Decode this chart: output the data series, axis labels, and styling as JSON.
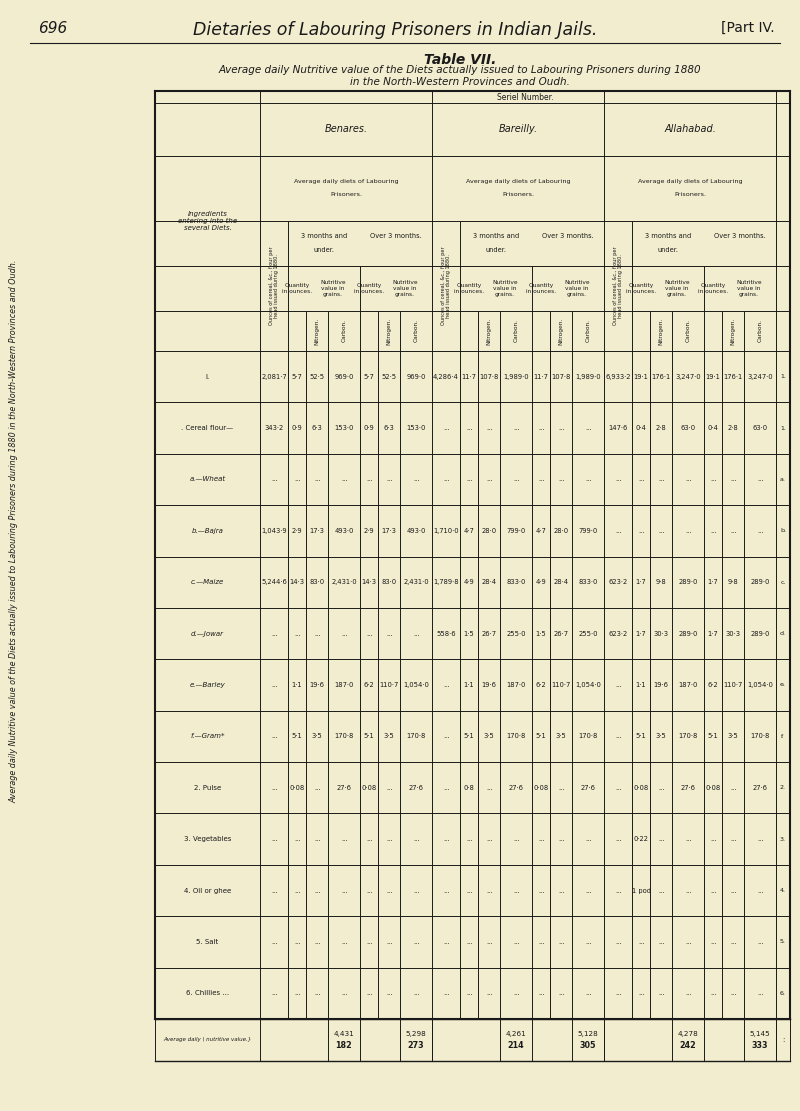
{
  "bg_color": "#f2edcf",
  "page_num": "696",
  "page_title": "Dietaries of Labouring Prisoners in Indian Jails.",
  "part": "[Part IV.",
  "table_num": "Table VII.",
  "subtitle1": "Average daily Nutritive value of the Diets actually issued to Labouring Prisoners during 1880",
  "subtitle2": "in the North-Western Provinces and Oudh.",
  "side_label": "Average daily Nutritive value of the Diets actually issued to Labouring Prisoners during 1880 in the North-Western Provinces and Oudh.",
  "jails": [
    "Benares.",
    "Bareilly.",
    "Allahabad."
  ],
  "serial_numbers": [
    "1.",
    "1.",
    "a.",
    "b.",
    "c.",
    "d.",
    "e.",
    "f.",
    "2.",
    "3.",
    "4.",
    "5.",
    "6.",
    ":"
  ],
  "ingredients": [
    "I.",
    ". Cereal flour—",
    "a.—Wheat",
    "b.—Bajra",
    "c.—Maize",
    "d.—Jowar",
    "e.—Barley",
    "f.—Gram*",
    "2. Pulse",
    "3. Vegetables",
    "4. Oil or ghee",
    "5. Salt",
    "6. Chillies ..."
  ],
  "benares": {
    "oz": [
      "2,081·7",
      "343·2",
      "...",
      "1,043·9",
      "5,244·6",
      "...",
      "...",
      "...",
      "...",
      "...",
      "...",
      "...",
      "..."
    ],
    "u_qty": [
      "5·7",
      "0·9",
      "...",
      "2·9",
      "14·3",
      "...",
      "1·1",
      "5·1",
      "0·08",
      "...",
      "...",
      "...",
      "..."
    ],
    "u_n": [
      "52·5",
      "6·3",
      "...",
      "17·3",
      "83·0",
      "...",
      "19·6",
      "3·5",
      "...",
      "...",
      "...",
      "...",
      "..."
    ],
    "u_c": [
      "969·0",
      "153·0",
      "...",
      "493·0",
      "2,431·0",
      "...",
      "187·0",
      "170·8",
      "27·6",
      "...",
      "...",
      "...",
      "..."
    ],
    "o_qty": [
      "5·7",
      "0·9",
      "...",
      "2·9",
      "14·3",
      "...",
      "6·2",
      "5·1",
      "0·08",
      "...",
      "...",
      "...",
      "..."
    ],
    "o_n": [
      "52·5",
      "6·3",
      "...",
      "17·3",
      "83·0",
      "...",
      "110·7",
      "3·5",
      "...",
      "...",
      "...",
      "...",
      "..."
    ],
    "o_c": [
      "969·0",
      "153·0",
      "...",
      "493·0",
      "2,431·0",
      "...",
      "1,054·0",
      "170·8",
      "27·6",
      "...",
      "...",
      "...",
      "..."
    ],
    "tot_u_n": "182",
    "tot_u_c": "4,431",
    "tot_o_n": "273",
    "tot_o_c": "5,298"
  },
  "bareilly": {
    "oz": [
      "4,286·4",
      "...",
      "...",
      "1,710·0",
      "1,789·8",
      "558·6",
      "...",
      "...",
      "...",
      "...",
      "...",
      "...",
      "..."
    ],
    "u_qty": [
      "11·7",
      "...",
      "...",
      "4·7",
      "4·9",
      "1·5",
      "1·1",
      "5·1",
      "0·8",
      "...",
      "...",
      "...",
      "..."
    ],
    "u_n": [
      "107·8",
      "...",
      "...",
      "28·0",
      "28·4",
      "26·7",
      "19·6",
      "3·5",
      "...",
      "...",
      "...",
      "...",
      "..."
    ],
    "u_c": [
      "1,989·0",
      "...",
      "...",
      "799·0",
      "833·0",
      "255·0",
      "187·0",
      "170·8",
      "27·6",
      "...",
      "...",
      "...",
      "..."
    ],
    "o_qty": [
      "11·7",
      "...",
      "...",
      "4·7",
      "4·9",
      "1·5",
      "6·2",
      "5·1",
      "0·08",
      "...",
      "...",
      "...",
      "..."
    ],
    "o_n": [
      "107·8",
      "...",
      "...",
      "28·0",
      "28·4",
      "26·7",
      "110·7",
      "3·5",
      "...",
      "...",
      "...",
      "...",
      "..."
    ],
    "o_c": [
      "1,989·0",
      "...",
      "...",
      "799·0",
      "833·0",
      "255·0",
      "1,054·0",
      "170·8",
      "27·6",
      "...",
      "...",
      "...",
      "..."
    ],
    "tot_u_n": "214",
    "tot_u_c": "4,261",
    "tot_o_n": "305",
    "tot_o_c": "5,128"
  },
  "allahabad": {
    "oz": [
      "6,933·2",
      "147·6",
      "...",
      "...",
      "623·2",
      "623·2",
      "...",
      "...",
      "...",
      "...",
      "...",
      "...",
      "..."
    ],
    "u_qty": [
      "19·1",
      "0·4",
      "...",
      "...",
      "1·7",
      "1·7",
      "1·1",
      "5·1",
      "0·08",
      "0·22",
      "1 pod",
      "...",
      "..."
    ],
    "u_n": [
      "176·1",
      "2·8",
      "...",
      "...",
      "9·8",
      "30·3",
      "19·6",
      "3·5",
      "...",
      "...",
      "...",
      "...",
      "..."
    ],
    "u_c": [
      "3,247·0",
      "63·0",
      "...",
      "...",
      "289·0",
      "289·0",
      "187·0",
      "170·8",
      "27·6",
      "...",
      "...",
      "...",
      "..."
    ],
    "o_qty": [
      "19·1",
      "0·4",
      "...",
      "...",
      "1·7",
      "1·7",
      "6·2",
      "5·1",
      "0·08",
      "...",
      "...",
      "...",
      "..."
    ],
    "o_n": [
      "176·1",
      "2·8",
      "...",
      "...",
      "9·8",
      "30·3",
      "110·7",
      "3·5",
      "...",
      "...",
      "...",
      "...",
      "..."
    ],
    "o_c": [
      "3,247·0",
      "63·0",
      "...",
      "...",
      "289·0",
      "289·0",
      "1,054·0",
      "170·8",
      "27·6",
      "...",
      "...",
      "...",
      "..."
    ],
    "tot_u_n": "242",
    "tot_u_c": "4,278",
    "tot_o_n": "333",
    "tot_o_c": "5,145"
  }
}
